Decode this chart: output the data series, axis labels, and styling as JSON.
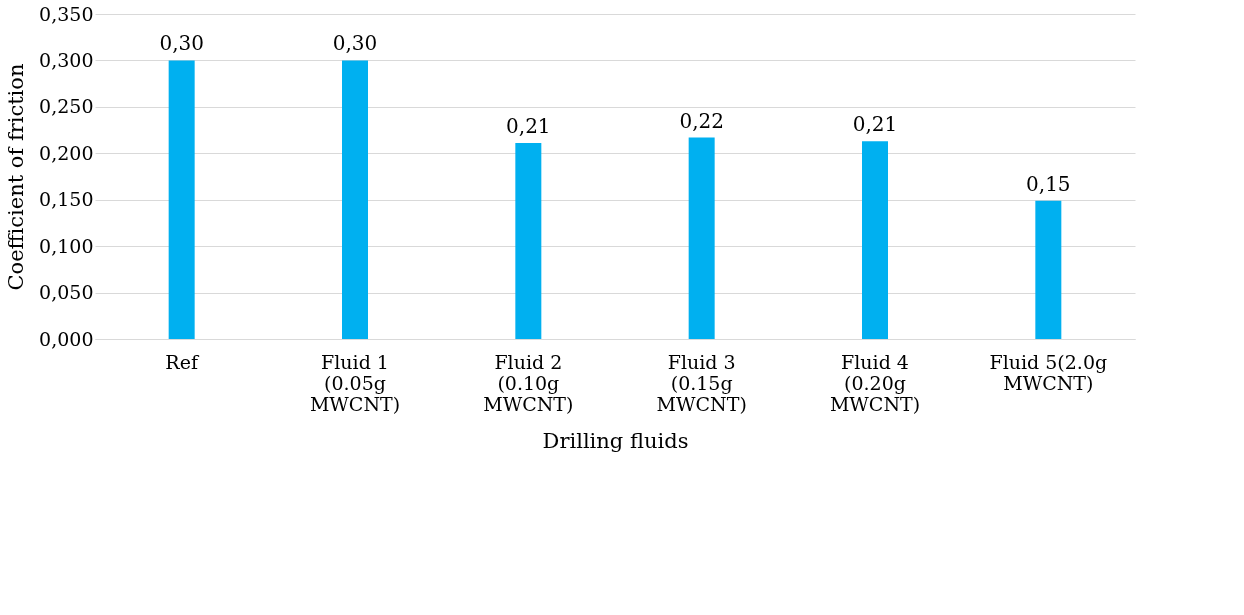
{
  "chart_data": {
    "type": "bar",
    "xlabel": "Drilling fluids",
    "ylabel": "Coefficient of friction",
    "categories": [
      "Ref",
      "Fluid 1 (0.05g MWCNT)",
      "Fluid 2 (0.10g MWCNT)",
      "Fluid 3 (0.15g MWCNT)",
      "Fluid 4 (0.20g MWCNT)",
      "Fluid 5(2.0g MWCNT)"
    ],
    "values": [
      0.3,
      0.3,
      0.211,
      0.217,
      0.213,
      0.149
    ],
    "value_labels": [
      "0,30",
      "0,30",
      "0,21",
      "0,22",
      "0,21",
      "0,15"
    ],
    "color": "#00b0f0",
    "ylim": [
      0,
      0.35
    ],
    "yticks": [
      {
        "value": 0,
        "label": "0,000"
      },
      {
        "value": 0.05,
        "label": "0,050"
      },
      {
        "value": 0.1,
        "label": "0,100"
      },
      {
        "value": 0.15,
        "label": "0,150"
      },
      {
        "value": 0.2,
        "label": "0,200"
      },
      {
        "value": 0.25,
        "label": "0,250"
      },
      {
        "value": 0.3,
        "label": "0,300"
      },
      {
        "value": 0.35,
        "label": "0,350"
      }
    ],
    "grid": "y"
  }
}
